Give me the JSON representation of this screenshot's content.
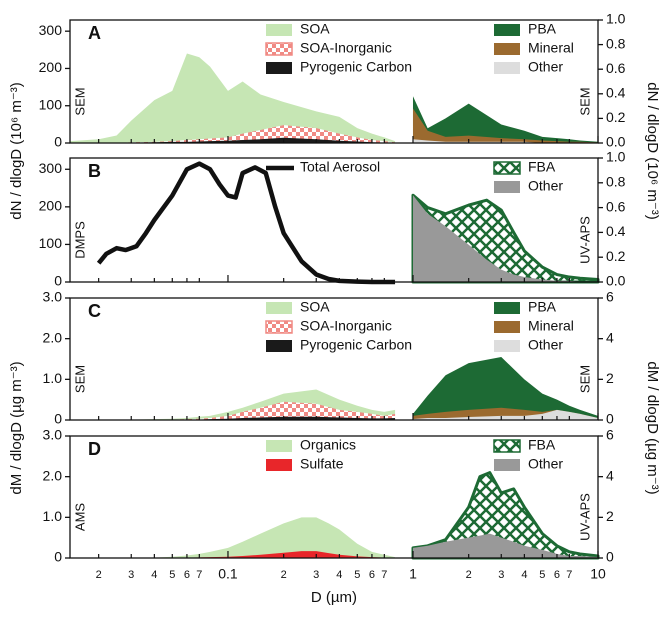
{
  "chart_data": [
    {
      "type": "area",
      "panel_label": "A",
      "method_left": "SEM",
      "method_right": "SEM",
      "ylabel": "dN / dlogD (10⁶ m⁻³)",
      "y2label": "dN / dlogD (10⁶ m⁻³)",
      "xscale": "log",
      "xlim": [
        0.014,
        10
      ],
      "ylim": [
        0,
        330
      ],
      "yticks": [
        0,
        100,
        200,
        300
      ],
      "y2lim": [
        0,
        1.0
      ],
      "y2ticks": [
        {
          "value": 0,
          "label": "0.0"
        },
        {
          "value": 0.2,
          "label": "0.2"
        },
        {
          "value": 0.4,
          "label": "0.4"
        },
        {
          "value": 0.6,
          "label": "0.6"
        },
        {
          "value": 0.8,
          "label": "0.8"
        },
        {
          "value": 1.0,
          "label": "1.0"
        }
      ],
      "series": [
        {
          "name": "SOA",
          "color": "#c6e6b4",
          "x": [
            0.014,
            0.02,
            0.025,
            0.03,
            0.04,
            0.05,
            0.06,
            0.07,
            0.08,
            0.1,
            0.12,
            0.15,
            0.2,
            0.3,
            0.4,
            0.5,
            0.6,
            0.7,
            0.8
          ],
          "values": [
            5,
            10,
            20,
            60,
            115,
            140,
            240,
            230,
            205,
            140,
            165,
            130,
            110,
            85,
            70,
            40,
            25,
            15,
            5
          ]
        },
        {
          "name": "SOA-Inorganic",
          "color": "#f08a84",
          "pattern": "checker",
          "x": [
            0.014,
            0.02,
            0.025,
            0.03,
            0.04,
            0.05,
            0.06,
            0.07,
            0.08,
            0.1,
            0.12,
            0.15,
            0.2,
            0.3,
            0.4,
            0.5,
            0.6,
            0.7,
            0.8
          ],
          "values": [
            0,
            0,
            0,
            2,
            3,
            5,
            8,
            10,
            12,
            15,
            25,
            35,
            48,
            40,
            25,
            15,
            8,
            5,
            2
          ]
        },
        {
          "name": "Pyrogenic Carbon",
          "color": "#1a1a1a",
          "x": [
            0.014,
            0.02,
            0.025,
            0.03,
            0.04,
            0.05,
            0.06,
            0.07,
            0.08,
            0.1,
            0.12,
            0.15,
            0.2,
            0.3,
            0.4,
            0.5,
            0.6,
            0.7,
            0.8
          ],
          "values": [
            0,
            0,
            0,
            1,
            2,
            3,
            3,
            4,
            5,
            6,
            8,
            10,
            14,
            10,
            6,
            4,
            2,
            1,
            0
          ]
        },
        {
          "name": "PBA",
          "color": "#1d6a34",
          "axis": "y2",
          "x": [
            1,
            1.2,
            1.5,
            2,
            3,
            4,
            5,
            6,
            7,
            8,
            10
          ],
          "values": [
            0.38,
            0.12,
            0.2,
            0.32,
            0.15,
            0.1,
            0.05,
            0.04,
            0.03,
            0.02,
            0.01
          ]
        },
        {
          "name": "Mineral",
          "color": "#9b6a2f",
          "axis": "y2",
          "x": [
            1,
            1.2,
            1.5,
            2,
            3,
            4,
            5,
            6,
            7,
            8,
            10
          ],
          "values": [
            0.28,
            0.1,
            0.05,
            0.06,
            0.04,
            0.03,
            0.02,
            0.015,
            0.01,
            0.01,
            0.005
          ]
        },
        {
          "name": "Other",
          "color": "#dddddd",
          "axis": "y2",
          "x": [
            1,
            1.2,
            1.5,
            2,
            3,
            4,
            5,
            6,
            7,
            8,
            10
          ],
          "values": [
            0.03,
            0.02,
            0.01,
            0.01,
            0.01,
            0.01,
            0,
            0,
            0,
            0,
            0
          ]
        }
      ]
    },
    {
      "type": "area",
      "panel_label": "B",
      "method_left": "DMPS",
      "method_right": "UV-APS",
      "xscale": "log",
      "xlim": [
        0.014,
        10
      ],
      "ylim": [
        0,
        330
      ],
      "yticks": [
        0,
        100,
        200,
        300
      ],
      "y2lim": [
        0,
        1.0
      ],
      "y2ticks": [
        {
          "value": 0,
          "label": "0.0"
        },
        {
          "value": 0.2,
          "label": "0.2"
        },
        {
          "value": 0.4,
          "label": "0.4"
        },
        {
          "value": 0.6,
          "label": "0.6"
        },
        {
          "value": 0.8,
          "label": "0.8"
        },
        {
          "value": 1.0,
          "label": "1.0"
        }
      ],
      "series": [
        {
          "name": "Total Aerosol",
          "type": "line",
          "color": "#111111",
          "x": [
            0.02,
            0.022,
            0.025,
            0.028,
            0.032,
            0.036,
            0.04,
            0.05,
            0.06,
            0.07,
            0.08,
            0.09,
            0.1,
            0.11,
            0.12,
            0.14,
            0.16,
            0.18,
            0.2,
            0.25,
            0.3,
            0.35,
            0.4,
            0.5,
            0.6,
            0.8
          ],
          "values": [
            50,
            75,
            90,
            85,
            95,
            130,
            165,
            230,
            300,
            315,
            300,
            260,
            230,
            225,
            290,
            305,
            290,
            200,
            130,
            55,
            20,
            8,
            3,
            1,
            0,
            0
          ]
        },
        {
          "name": "FBA",
          "color": "#1d6a34",
          "pattern": "crosshatch",
          "axis": "y2",
          "x": [
            1,
            1.2,
            1.5,
            2,
            2.5,
            3,
            3.5,
            4,
            5,
            6,
            7,
            8,
            10
          ],
          "values": [
            0.7,
            0.6,
            0.55,
            0.62,
            0.66,
            0.58,
            0.4,
            0.25,
            0.12,
            0.06,
            0.04,
            0.03,
            0.02
          ]
        },
        {
          "name": "Other",
          "color": "#999999",
          "axis": "y2",
          "x": [
            1,
            1.2,
            1.5,
            2,
            2.5,
            3,
            3.5,
            4,
            5,
            6,
            7,
            8,
            10
          ],
          "values": [
            0.7,
            0.55,
            0.45,
            0.3,
            0.18,
            0.1,
            0.06,
            0.04,
            0.02,
            0.01,
            0.01,
            0,
            0
          ]
        }
      ]
    },
    {
      "type": "area",
      "panel_label": "C",
      "method_left": "SEM",
      "method_right": "SEM",
      "ylabel": "dM / dlogD (µg m⁻³)",
      "y2label": "dM / dlogD (µg m⁻³)",
      "xscale": "log",
      "xlim": [
        0.014,
        10
      ],
      "ylim": [
        0,
        3
      ],
      "yticks": [
        0,
        {
          "value": 1,
          "label": "1.0"
        },
        {
          "value": 2,
          "label": "2.0"
        },
        {
          "value": 3,
          "label": "3.0"
        }
      ],
      "y2lim": [
        0,
        6
      ],
      "y2ticks": [
        0,
        2,
        4,
        6
      ],
      "series": [
        {
          "name": "SOA",
          "color": "#c6e6b4",
          "x": [
            0.014,
            0.02,
            0.025,
            0.03,
            0.04,
            0.05,
            0.06,
            0.07,
            0.08,
            0.1,
            0.12,
            0.15,
            0.2,
            0.3,
            0.4,
            0.5,
            0.6,
            0.7,
            0.8
          ],
          "values": [
            0,
            0,
            0,
            0.01,
            0.02,
            0.03,
            0.05,
            0.08,
            0.1,
            0.2,
            0.3,
            0.45,
            0.65,
            0.75,
            0.5,
            0.35,
            0.25,
            0.2,
            0.25
          ]
        },
        {
          "name": "SOA-Inorganic",
          "color": "#f08a84",
          "pattern": "checker",
          "x": [
            0.014,
            0.02,
            0.025,
            0.03,
            0.04,
            0.05,
            0.06,
            0.07,
            0.08,
            0.1,
            0.12,
            0.15,
            0.2,
            0.3,
            0.4,
            0.5,
            0.6,
            0.7,
            0.8
          ],
          "values": [
            0,
            0,
            0,
            0,
            0.01,
            0.01,
            0.02,
            0.03,
            0.05,
            0.1,
            0.2,
            0.3,
            0.45,
            0.4,
            0.25,
            0.2,
            0.15,
            0.1,
            0.15
          ]
        },
        {
          "name": "Pyrogenic Carbon",
          "color": "#1a1a1a",
          "x": [
            0.014,
            0.02,
            0.025,
            0.03,
            0.04,
            0.05,
            0.06,
            0.07,
            0.08,
            0.1,
            0.12,
            0.15,
            0.2,
            0.3,
            0.4,
            0.5,
            0.6,
            0.7,
            0.8
          ],
          "values": [
            0,
            0,
            0,
            0,
            0,
            0,
            0.01,
            0.01,
            0.02,
            0.03,
            0.05,
            0.06,
            0.08,
            0.08,
            0.06,
            0.05,
            0.04,
            0.04,
            0.05
          ]
        },
        {
          "name": "PBA",
          "color": "#1d6a34",
          "axis": "y2",
          "x": [
            1,
            1.2,
            1.5,
            2,
            3,
            4,
            5,
            6,
            7,
            8,
            10
          ],
          "values": [
            0.3,
            1.2,
            2.2,
            2.8,
            3.1,
            2.0,
            1.3,
            1.0,
            0.7,
            0.5,
            0.2
          ]
        },
        {
          "name": "Mineral",
          "color": "#9b6a2f",
          "axis": "y2",
          "x": [
            1,
            1.2,
            1.5,
            2,
            3,
            4,
            5,
            6,
            7,
            8,
            10
          ],
          "values": [
            0.2,
            0.3,
            0.4,
            0.5,
            0.6,
            0.5,
            0.4,
            0.5,
            0.4,
            0.3,
            0.1
          ]
        },
        {
          "name": "Other",
          "color": "#dddddd",
          "axis": "y2",
          "x": [
            1,
            1.2,
            1.5,
            2,
            3,
            4,
            5,
            6,
            7,
            8,
            10
          ],
          "values": [
            0.05,
            0.1,
            0.1,
            0.15,
            0.2,
            0.2,
            0.3,
            0.5,
            0.4,
            0.3,
            0.1
          ]
        }
      ]
    },
    {
      "type": "area",
      "panel_label": "D",
      "method_left": "AMS",
      "method_right": "UV-APS",
      "xlabel": "D (µm)",
      "xscale": "log",
      "xlim": [
        0.014,
        10
      ],
      "xticks": [
        {
          "value": 0.02,
          "label": "2"
        },
        {
          "value": 0.03,
          "label": "3"
        },
        {
          "value": 0.04,
          "label": "4"
        },
        {
          "value": 0.05,
          "label": "5"
        },
        {
          "value": 0.06,
          "label": "6"
        },
        {
          "value": 0.07,
          "label": "7"
        },
        0.1,
        {
          "value": 0.2,
          "label": "2"
        },
        {
          "value": 0.3,
          "label": "3"
        },
        {
          "value": 0.4,
          "label": "4"
        },
        {
          "value": 0.5,
          "label": "5"
        },
        {
          "value": 0.6,
          "label": "6"
        },
        {
          "value": 0.7,
          "label": "7"
        },
        1,
        {
          "value": 2,
          "label": "2"
        },
        {
          "value": 3,
          "label": "3"
        },
        {
          "value": 4,
          "label": "4"
        },
        {
          "value": 5,
          "label": "5"
        },
        {
          "value": 6,
          "label": "6"
        },
        {
          "value": 7,
          "label": "7"
        },
        10
      ],
      "ylim": [
        0,
        3
      ],
      "yticks": [
        0,
        {
          "value": 1,
          "label": "1.0"
        },
        {
          "value": 2,
          "label": "2.0"
        },
        {
          "value": 3,
          "label": "3.0"
        }
      ],
      "y2lim": [
        0,
        6
      ],
      "y2ticks": [
        0,
        2,
        4,
        6
      ],
      "series": [
        {
          "name": "Organics",
          "color": "#c6e6b4",
          "x": [
            0.04,
            0.05,
            0.06,
            0.07,
            0.08,
            0.1,
            0.12,
            0.15,
            0.2,
            0.25,
            0.3,
            0.35,
            0.4,
            0.5,
            0.6,
            0.7,
            0.8
          ],
          "values": [
            0.01,
            0.03,
            0.06,
            0.1,
            0.15,
            0.25,
            0.4,
            0.6,
            0.85,
            1.0,
            1.0,
            0.85,
            0.7,
            0.35,
            0.15,
            0.08,
            0.02
          ]
        },
        {
          "name": "Sulfate",
          "color": "#e8262a",
          "x": [
            0.04,
            0.05,
            0.06,
            0.07,
            0.08,
            0.1,
            0.12,
            0.15,
            0.2,
            0.25,
            0.3,
            0.35,
            0.4,
            0.5,
            0.6,
            0.7,
            0.8
          ],
          "values": [
            0,
            0.005,
            0.01,
            0.015,
            0.02,
            0.03,
            0.05,
            0.08,
            0.13,
            0.17,
            0.17,
            0.12,
            0.08,
            0.04,
            0.02,
            0.01,
            0
          ]
        },
        {
          "name": "FBA",
          "color": "#1d6a34",
          "pattern": "crosshatch",
          "axis": "y2",
          "x": [
            1,
            1.2,
            1.5,
            2,
            2.3,
            2.6,
            3,
            3.5,
            4,
            5,
            6,
            7,
            8,
            10
          ],
          "values": [
            0.5,
            0.6,
            0.9,
            2.5,
            4.0,
            4.2,
            3.2,
            3.4,
            2.5,
            1.2,
            0.6,
            0.3,
            0.2,
            0.1
          ]
        },
        {
          "name": "Other",
          "color": "#999999",
          "axis": "y2",
          "x": [
            1,
            1.2,
            1.5,
            2,
            2.3,
            2.6,
            3,
            3.5,
            4,
            5,
            6,
            7,
            8,
            10
          ],
          "values": [
            0.5,
            0.6,
            0.8,
            1.0,
            1.1,
            1.2,
            1.0,
            0.8,
            0.6,
            0.4,
            0.2,
            0.1,
            0.1,
            0.05
          ]
        }
      ]
    }
  ]
}
